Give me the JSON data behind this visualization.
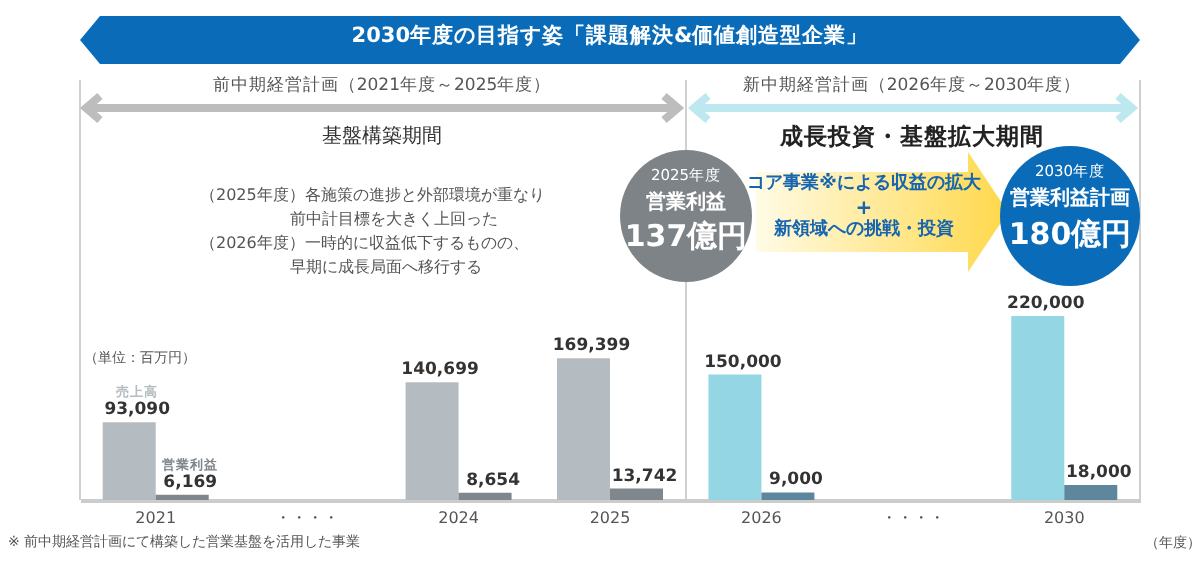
{
  "chart_data": {
    "type": "bar",
    "title": "2030年度の目指す姿「課題解決&価値創造型企業」",
    "xlabel": "（年度）",
    "categories": [
      "2021",
      "・・・・",
      "2024",
      "2025",
      "2026",
      "・・・・",
      "2030"
    ],
    "series": [
      {
        "name": "売上高",
        "values": [
          93090,
          null,
          140699,
          169399,
          150000,
          null,
          220000
        ],
        "colors": [
          "#b4bcc1",
          null,
          "#b4bcc1",
          "#b4bcc1",
          "#94d6e3",
          null,
          "#94d6e3"
        ],
        "value_labels": [
          "93,090",
          null,
          "140,699",
          "169,399",
          "150,000",
          null,
          "220,000"
        ]
      },
      {
        "name": "営業利益",
        "values": [
          6169,
          null,
          8654,
          13742,
          9000,
          null,
          18000
        ],
        "colors": [
          "#7f868c",
          null,
          "#7f868c",
          "#7f868c",
          "#5e879e",
          null,
          "#5e879e"
        ],
        "value_labels": [
          "6,169",
          null,
          "8,654",
          "13,742",
          "9,000",
          null,
          "18,000"
        ]
      }
    ],
    "annotations": [
      "前中期経営計画（2021年度～2025年度）",
      "基盤構築期間",
      "新中期経営計画（2026年度～2030年度）",
      "成長投資・基盤拡大期間",
      "（2025年度）各施策の進捗と外部環境が重なり",
      "前中計目標を大きく上回った",
      "（2026年度）一時的に収益低下するものの、",
      "早期に成長局面へ移行する",
      "（単位：百万円）",
      "2025年度",
      "営業利益",
      "137億円",
      "コア事業※による収益の拡大",
      "+",
      "新領域への挑戦・投資",
      "2030年度",
      "営業利益計画",
      "180億円",
      "※ 前中期経営計画にて構築した営業基盤を活用した事業"
    ]
  }
}
